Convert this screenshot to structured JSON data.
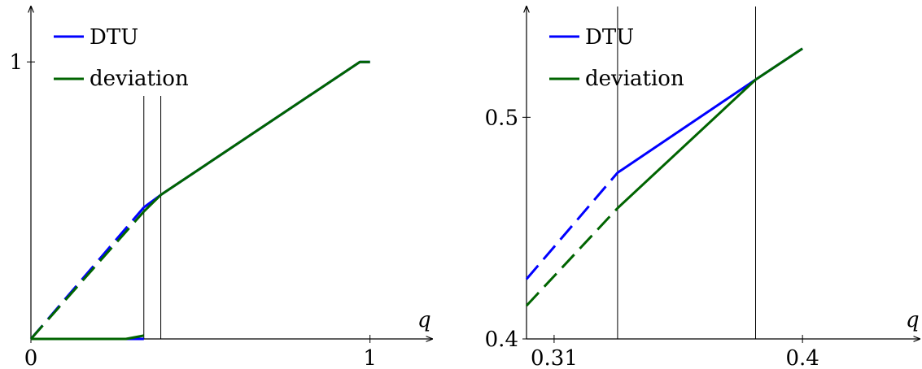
{
  "chart_data": [
    {
      "type": "line",
      "title": "",
      "xlabel": "q",
      "ylabel": "",
      "xlim": [
        0,
        1.2
      ],
      "ylim": [
        0,
        1.2
      ],
      "xticks": [
        {
          "value": 0,
          "label": "0"
        },
        {
          "value": 1,
          "label": "1"
        }
      ],
      "yticks": [
        {
          "value": 1,
          "label": "1"
        }
      ],
      "vlines": [
        0.333,
        0.383
      ],
      "legend": {
        "position": "top-left",
        "entries": [
          "DTU",
          "deviation"
        ]
      },
      "series": [
        {
          "name": "DTU",
          "color": "#0000ff",
          "segments": [
            {
              "style": "dashed",
              "x": [
                0,
                0.333
              ],
              "y": [
                0,
                0.475
              ]
            },
            {
              "style": "solid",
              "x": [
                0.333,
                0.383,
                0.97,
                1.0
              ],
              "y": [
                0.475,
                0.52,
                1.0,
                1.0
              ]
            },
            {
              "style": "solid",
              "x": [
                0,
                0.28,
                0.333
              ],
              "y": [
                0,
                0,
                0
              ]
            }
          ]
        },
        {
          "name": "deviation",
          "color": "#006400",
          "segments": [
            {
              "style": "dashed",
              "x": [
                0,
                0.333
              ],
              "y": [
                0,
                0.46
              ]
            },
            {
              "style": "solid",
              "x": [
                0.333,
                0.383,
                0.97,
                1.0
              ],
              "y": [
                0.46,
                0.52,
                1.0,
                1.0
              ]
            },
            {
              "style": "solid",
              "x": [
                0,
                0.28,
                0.333
              ],
              "y": [
                0,
                0,
                0.012
              ]
            }
          ]
        }
      ]
    },
    {
      "type": "line",
      "title": "",
      "xlabel": "q",
      "ylabel": "",
      "xlim": [
        0.3,
        0.4433
      ],
      "ylim": [
        0.4,
        0.55
      ],
      "xticks": [
        {
          "value": 0.31,
          "label": "0.31"
        },
        {
          "value": 0.4,
          "label": "0.4"
        }
      ],
      "yticks": [
        {
          "value": 0.4,
          "label": "0.4"
        },
        {
          "value": 0.5,
          "label": "0.5"
        }
      ],
      "vlines": [
        0.333,
        0.383
      ],
      "legend": {
        "position": "top-left",
        "entries": [
          "DTU",
          "deviation"
        ]
      },
      "series": [
        {
          "name": "DTU",
          "color": "#0000ff",
          "segments": [
            {
              "style": "dashed",
              "x": [
                0.3,
                0.333
              ],
              "y": [
                0.427,
                0.475
              ]
            },
            {
              "style": "solid",
              "x": [
                0.333,
                0.383,
                0.4
              ],
              "y": [
                0.475,
                0.517,
                0.531
              ]
            }
          ]
        },
        {
          "name": "deviation",
          "color": "#006400",
          "segments": [
            {
              "style": "dashed",
              "x": [
                0.3,
                0.333
              ],
              "y": [
                0.415,
                0.459
              ]
            },
            {
              "style": "solid",
              "x": [
                0.333,
                0.383,
                0.4
              ],
              "y": [
                0.459,
                0.517,
                0.531
              ]
            }
          ]
        }
      ]
    }
  ]
}
